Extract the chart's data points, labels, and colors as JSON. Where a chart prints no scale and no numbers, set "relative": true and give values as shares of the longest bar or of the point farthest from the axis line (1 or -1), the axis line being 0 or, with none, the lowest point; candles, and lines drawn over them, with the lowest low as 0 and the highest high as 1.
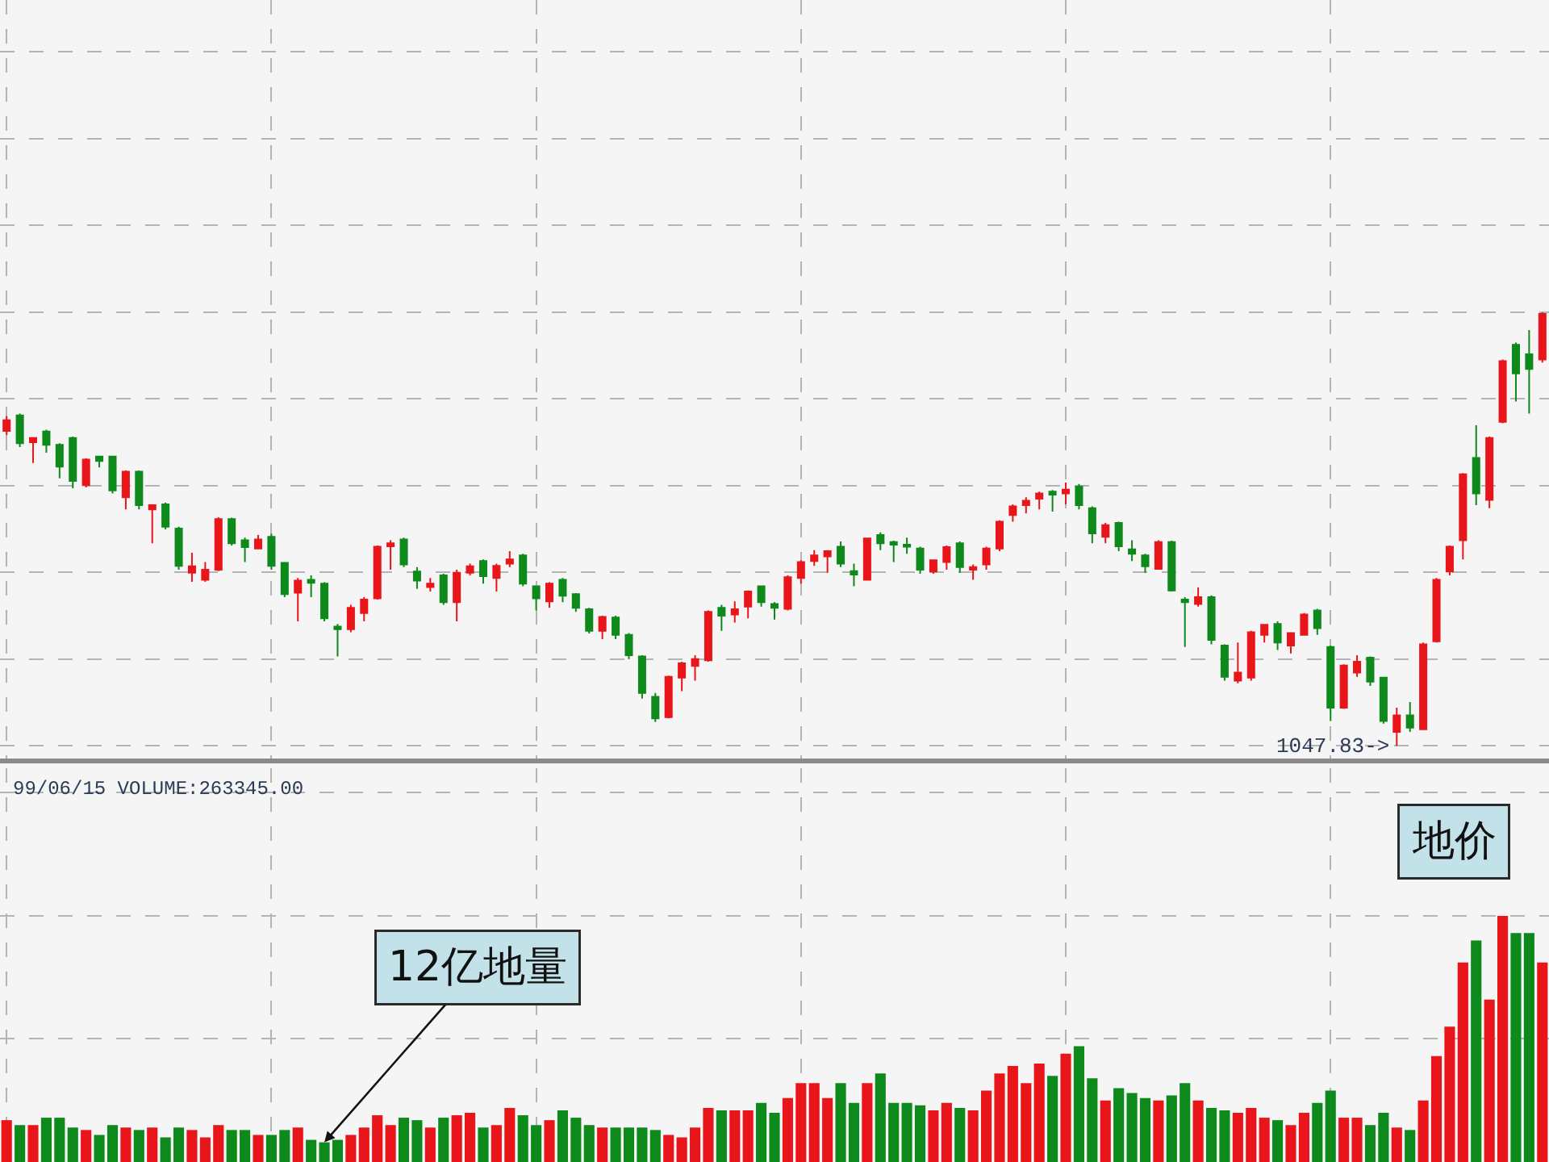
{
  "chart_data": [
    {
      "type": "candlestick",
      "relative": true,
      "grid": true,
      "tick_labels": false,
      "categories": [
        null,
        null,
        null,
        null,
        null,
        null,
        null,
        null,
        null,
        null,
        null,
        null,
        null,
        null,
        null,
        null,
        null,
        null,
        null,
        null,
        null,
        null,
        null,
        null,
        null,
        null,
        null,
        null,
        null,
        null,
        null,
        null,
        null,
        null,
        null,
        null,
        null,
        null,
        null,
        null,
        null,
        null,
        null,
        null,
        null,
        null,
        null,
        null,
        null,
        null,
        null,
        null,
        null,
        null,
        null,
        null,
        null,
        null,
        null,
        null,
        null,
        null,
        null,
        null,
        null,
        null,
        null,
        null,
        null,
        null,
        null,
        null,
        null,
        null,
        null,
        null,
        null,
        null,
        null,
        null,
        null,
        null,
        null,
        null,
        null,
        null,
        null,
        null,
        null,
        null,
        null,
        null,
        null,
        null,
        null,
        null,
        null,
        null,
        null,
        null,
        null,
        null,
        null,
        null,
        null,
        null,
        null,
        null,
        null,
        null,
        null,
        null,
        null,
        null,
        null,
        null,
        null
      ],
      "ohlc": [
        [
          0.726,
          0.76,
          0.716,
          0.751
        ],
        [
          0.762,
          0.766,
          0.689,
          0.698
        ],
        [
          0.7,
          0.71,
          0.652,
          0.71
        ],
        [
          0.725,
          0.729,
          0.676,
          0.694
        ],
        [
          0.694,
          0.698,
          0.617,
          0.644
        ],
        [
          0.71,
          0.713,
          0.594,
          0.611
        ],
        [
          0.601,
          0.663,
          0.596,
          0.66
        ],
        [
          0.667,
          0.669,
          0.642,
          0.657
        ],
        [
          0.667,
          0.669,
          0.582,
          0.589
        ],
        [
          0.573,
          0.635,
          0.545,
          0.632
        ],
        [
          0.632,
          0.635,
          0.545,
          0.555
        ],
        [
          0.545,
          0.555,
          0.467,
          0.555
        ],
        [
          0.557,
          0.561,
          0.499,
          0.505
        ],
        [
          0.501,
          0.505,
          0.406,
          0.415
        ],
        [
          0.399,
          0.445,
          0.378,
          0.414
        ],
        [
          0.383,
          0.424,
          0.378,
          0.406
        ],
        [
          0.406,
          0.527,
          0.403,
          0.523
        ],
        [
          0.523,
          0.526,
          0.462,
          0.467
        ],
        [
          0.474,
          0.48,
          0.424,
          0.458
        ],
        [
          0.455,
          0.486,
          0.453,
          0.476
        ],
        [
          0.482,
          0.489,
          0.406,
          0.415
        ],
        [
          0.422,
          0.424,
          0.343,
          0.35
        ],
        [
          0.353,
          0.387,
          0.287,
          0.381
        ],
        [
          0.383,
          0.393,
          0.343,
          0.376
        ],
        [
          0.374,
          0.377,
          0.287,
          0.294
        ],
        [
          0.275,
          0.281,
          0.206,
          0.269
        ],
        [
          0.269,
          0.325,
          0.262,
          0.318
        ],
        [
          0.306,
          0.343,
          0.287,
          0.337
        ],
        [
          0.34,
          0.462,
          0.337,
          0.459
        ],
        [
          0.46,
          0.474,
          0.406,
          0.467
        ],
        [
          0.476,
          0.48,
          0.412,
          0.418
        ],
        [
          0.402,
          0.412,
          0.362,
          0.381
        ],
        [
          0.366,
          0.387,
          0.356,
          0.374
        ],
        [
          0.393,
          0.397,
          0.325,
          0.331
        ],
        [
          0.331,
          0.406,
          0.287,
          0.399
        ],
        [
          0.399,
          0.42,
          0.393,
          0.414
        ],
        [
          0.426,
          0.43,
          0.374,
          0.391
        ],
        [
          0.387,
          0.42,
          0.356,
          0.415
        ],
        [
          0.42,
          0.449,
          0.412,
          0.43
        ],
        [
          0.439,
          0.443,
          0.368,
          0.374
        ],
        [
          0.368,
          0.37,
          0.312,
          0.34
        ],
        [
          0.333,
          0.377,
          0.318,
          0.374
        ],
        [
          0.383,
          0.387,
          0.331,
          0.346
        ],
        [
          0.35,
          0.352,
          0.309,
          0.318
        ],
        [
          0.315,
          0.318,
          0.259,
          0.265
        ],
        [
          0.265,
          0.3,
          0.246,
          0.297
        ],
        [
          0.296,
          0.3,
          0.246,
          0.256
        ],
        [
          0.256,
          0.26,
          0.2,
          0.209
        ],
        [
          0.206,
          0.209,
          0.109,
          0.122
        ],
        [
          0.113,
          0.122,
          0.055,
          0.063
        ],
        [
          0.066,
          0.162,
          0.063,
          0.159
        ],
        [
          0.157,
          0.194,
          0.126,
          0.19
        ],
        [
          0.184,
          0.209,
          0.15,
          0.2
        ],
        [
          0.197,
          0.312,
          0.194,
          0.309
        ],
        [
          0.318,
          0.325,
          0.265,
          0.3
        ],
        [
          0.303,
          0.333,
          0.284,
          0.315
        ],
        [
          0.321,
          0.358,
          0.294,
          0.356
        ],
        [
          0.368,
          0.37,
          0.321,
          0.331
        ],
        [
          0.327,
          0.331,
          0.291,
          0.318
        ],
        [
          0.316,
          0.393,
          0.312,
          0.389
        ],
        [
          0.387,
          0.428,
          0.374,
          0.424
        ],
        [
          0.426,
          0.451,
          0.415,
          0.439
        ],
        [
          0.437,
          0.451,
          0.399,
          0.449
        ],
        [
          0.459,
          0.471,
          0.412,
          0.42
        ],
        [
          0.403,
          0.42,
          0.368,
          0.395
        ],
        [
          0.383,
          0.48,
          0.381,
          0.478
        ],
        [
          0.486,
          0.492,
          0.451,
          0.467
        ],
        [
          0.47,
          0.473,
          0.424,
          0.464
        ],
        [
          0.464,
          0.48,
          0.443,
          0.459
        ],
        [
          0.455,
          0.459,
          0.397,
          0.406
        ],
        [
          0.402,
          0.43,
          0.397,
          0.428
        ],
        [
          0.424,
          0.462,
          0.406,
          0.458
        ],
        [
          0.467,
          0.471,
          0.399,
          0.412
        ],
        [
          0.406,
          0.418,
          0.383,
          0.412
        ],
        [
          0.418,
          0.459,
          0.406,
          0.455
        ],
        [
          0.455,
          0.52,
          0.449,
          0.517
        ],
        [
          0.532,
          0.557,
          0.517,
          0.552
        ],
        [
          0.555,
          0.573,
          0.536,
          0.565
        ],
        [
          0.57,
          0.586,
          0.545,
          0.582
        ],
        [
          0.586,
          0.59,
          0.54,
          0.579
        ],
        [
          0.582,
          0.607,
          0.557,
          0.591
        ],
        [
          0.598,
          0.604,
          0.545,
          0.555
        ],
        [
          0.548,
          0.552,
          0.467,
          0.49
        ],
        [
          0.482,
          0.514,
          0.467,
          0.509
        ],
        [
          0.514,
          0.517,
          0.449,
          0.46
        ],
        [
          0.453,
          0.474,
          0.426,
          0.443
        ],
        [
          0.439,
          0.443,
          0.399,
          0.414
        ],
        [
          0.408,
          0.474,
          0.406,
          0.47
        ],
        [
          0.47,
          0.473,
          0.356,
          0.358
        ],
        [
          0.337,
          0.343,
          0.228,
          0.331
        ],
        [
          0.327,
          0.365,
          0.321,
          0.343
        ],
        [
          0.343,
          0.347,
          0.234,
          0.244
        ],
        [
          0.231,
          0.234,
          0.15,
          0.159
        ],
        [
          0.15,
          0.238,
          0.144,
          0.169
        ],
        [
          0.157,
          0.265,
          0.15,
          0.262
        ],
        [
          0.256,
          0.281,
          0.238,
          0.279
        ],
        [
          0.281,
          0.287,
          0.221,
          0.238
        ],
        [
          0.231,
          0.262,
          0.213,
          0.26
        ],
        [
          0.256,
          0.306,
          0.254,
          0.303
        ],
        [
          0.312,
          0.316,
          0.256,
          0.271
        ],
        [
          0.228,
          0.231,
          0.057,
          0.088
        ],
        [
          0.088,
          0.188,
          0.085,
          0.185
        ],
        [
          0.169,
          0.209,
          0.159,
          0.194
        ],
        [
          0.203,
          0.206,
          0.138,
          0.148
        ],
        [
          0.157,
          0.159,
          0.051,
          0.057
        ],
        [
          0.032,
          0.088,
          0,
          0.07
        ],
        [
          0.07,
          0.101,
          0.032,
          0.042
        ],
        [
          0.038,
          0.238,
          0.036,
          0.234
        ],
        [
          0.241,
          0.387,
          0.238,
          0.383
        ],
        [
          0.402,
          0.462,
          0.393,
          0.459
        ],
        [
          0.474,
          0.629,
          0.43,
          0.626
        ],
        [
          0.664,
          0.739,
          0.555,
          0.582
        ],
        [
          0.567,
          0.713,
          0.548,
          0.71
        ],
        [
          0.747,
          0.891,
          0.744,
          0.887
        ],
        [
          0.925,
          0.93,
          0.794,
          0.859
        ],
        [
          0.903,
          0.959,
          0.766,
          0.869
        ],
        [
          0.891,
          1,
          0.884,
          0.996
        ]
      ],
      "colors": [
        "#e8161b",
        "#0e8a1c",
        "#e8161b",
        "#0e8a1c",
        "#0e8a1c",
        "#0e8a1c",
        "#e8161b",
        "#0e8a1c",
        "#0e8a1c",
        "#e8161b",
        "#0e8a1c",
        "#e8161b",
        "#0e8a1c",
        "#0e8a1c",
        "#e8161b",
        "#e8161b",
        "#e8161b",
        "#0e8a1c",
        "#0e8a1c",
        "#e8161b",
        "#0e8a1c",
        "#0e8a1c",
        "#e8161b",
        "#0e8a1c",
        "#0e8a1c",
        "#0e8a1c",
        "#e8161b",
        "#e8161b",
        "#e8161b",
        "#e8161b",
        "#0e8a1c",
        "#0e8a1c",
        "#e8161b",
        "#0e8a1c",
        "#e8161b",
        "#e8161b",
        "#0e8a1c",
        "#e8161b",
        "#e8161b",
        "#0e8a1c",
        "#0e8a1c",
        "#e8161b",
        "#0e8a1c",
        "#0e8a1c",
        "#0e8a1c",
        "#e8161b",
        "#0e8a1c",
        "#0e8a1c",
        "#0e8a1c",
        "#0e8a1c",
        "#e8161b",
        "#e8161b",
        "#e8161b",
        "#e8161b",
        "#0e8a1c",
        "#e8161b",
        "#e8161b",
        "#0e8a1c",
        "#0e8a1c",
        "#e8161b",
        "#e8161b",
        "#e8161b",
        "#e8161b",
        "#0e8a1c",
        "#0e8a1c",
        "#e8161b",
        "#0e8a1c",
        "#0e8a1c",
        "#0e8a1c",
        "#0e8a1c",
        "#e8161b",
        "#e8161b",
        "#0e8a1c",
        "#e8161b",
        "#e8161b",
        "#e8161b",
        "#e8161b",
        "#e8161b",
        "#e8161b",
        "#0e8a1c",
        "#e8161b",
        "#0e8a1c",
        "#0e8a1c",
        "#e8161b",
        "#0e8a1c",
        "#0e8a1c",
        "#0e8a1c",
        "#e8161b",
        "#0e8a1c",
        "#0e8a1c",
        "#e8161b",
        "#0e8a1c",
        "#0e8a1c",
        "#e8161b",
        "#e8161b",
        "#e8161b",
        "#0e8a1c",
        "#e8161b",
        "#e8161b",
        "#0e8a1c",
        "#0e8a1c",
        "#e8161b",
        "#e8161b",
        "#0e8a1c",
        "#0e8a1c",
        "#e8161b",
        "#0e8a1c",
        "#e8161b",
        "#e8161b",
        "#e8161b",
        "#e8161b",
        "#0e8a1c",
        "#e8161b",
        "#e8161b",
        "#0e8a1c",
        "#0e8a1c",
        "#e8161b"
      ],
      "annotations": [
        "1047.83->"
      ]
    },
    {
      "type": "bar",
      "relative": true,
      "grid": true,
      "tick_labels": false,
      "title": "99/06/15 VOLUME:263345.00",
      "categories": [
        null,
        null,
        null,
        null,
        null,
        null,
        null,
        null,
        null,
        null,
        null,
        null,
        null,
        null,
        null,
        null,
        null,
        null,
        null,
        null,
        null,
        null,
        null,
        null,
        null,
        null,
        null,
        null,
        null,
        null,
        null,
        null,
        null,
        null,
        null,
        null,
        null,
        null,
        null,
        null,
        null,
        null,
        null,
        null,
        null,
        null,
        null,
        null,
        null,
        null,
        null,
        null,
        null,
        null,
        null,
        null,
        null,
        null,
        null,
        null,
        null,
        null,
        null,
        null,
        null,
        null,
        null,
        null,
        null,
        null,
        null,
        null,
        null,
        null,
        null,
        null,
        null,
        null,
        null,
        null,
        null,
        null,
        null,
        null,
        null,
        null,
        null,
        null,
        null,
        null,
        null,
        null,
        null,
        null,
        null,
        null,
        null,
        null,
        null,
        null,
        null,
        null,
        null,
        null,
        null,
        null,
        null,
        null,
        null,
        null,
        null,
        null,
        null,
        null,
        null,
        null,
        null
      ],
      "values": [
        0.17,
        0.15,
        0.15,
        0.18,
        0.18,
        0.14,
        0.13,
        0.11,
        0.15,
        0.14,
        0.13,
        0.14,
        0.1,
        0.14,
        0.13,
        0.1,
        0.15,
        0.13,
        0.13,
        0.11,
        0.11,
        0.13,
        0.14,
        0.09,
        0.08,
        0.09,
        0.11,
        0.14,
        0.19,
        0.15,
        0.18,
        0.17,
        0.14,
        0.18,
        0.19,
        0.2,
        0.14,
        0.15,
        0.22,
        0.19,
        0.15,
        0.17,
        0.21,
        0.18,
        0.15,
        0.14,
        0.14,
        0.14,
        0.14,
        0.13,
        0.11,
        0.1,
        0.14,
        0.22,
        0.21,
        0.21,
        0.21,
        0.24,
        0.2,
        0.26,
        0.32,
        0.32,
        0.26,
        0.32,
        0.24,
        0.32,
        0.36,
        0.24,
        0.24,
        0.23,
        0.21,
        0.24,
        0.22,
        0.21,
        0.29,
        0.36,
        0.39,
        0.32,
        0.4,
        0.35,
        0.44,
        0.47,
        0.34,
        0.25,
        0.3,
        0.28,
        0.26,
        0.25,
        0.27,
        0.32,
        0.25,
        0.22,
        0.21,
        0.2,
        0.22,
        0.18,
        0.17,
        0.15,
        0.2,
        0.24,
        0.29,
        0.18,
        0.18,
        0.15,
        0.2,
        0.14,
        0.13,
        0.25,
        0.43,
        0.55,
        0.81,
        0.9,
        0.66,
        1.0,
        0.93,
        0.93,
        0.81
      ],
      "colors": [
        "#e8161b",
        "#0e8a1c",
        "#e8161b",
        "#0e8a1c",
        "#0e8a1c",
        "#0e8a1c",
        "#e8161b",
        "#0e8a1c",
        "#0e8a1c",
        "#e8161b",
        "#0e8a1c",
        "#e8161b",
        "#0e8a1c",
        "#0e8a1c",
        "#e8161b",
        "#e8161b",
        "#e8161b",
        "#0e8a1c",
        "#0e8a1c",
        "#e8161b",
        "#0e8a1c",
        "#0e8a1c",
        "#e8161b",
        "#0e8a1c",
        "#0e8a1c",
        "#0e8a1c",
        "#e8161b",
        "#e8161b",
        "#e8161b",
        "#e8161b",
        "#0e8a1c",
        "#0e8a1c",
        "#e8161b",
        "#0e8a1c",
        "#e8161b",
        "#e8161b",
        "#0e8a1c",
        "#e8161b",
        "#e8161b",
        "#0e8a1c",
        "#0e8a1c",
        "#e8161b",
        "#0e8a1c",
        "#0e8a1c",
        "#0e8a1c",
        "#e8161b",
        "#0e8a1c",
        "#0e8a1c",
        "#0e8a1c",
        "#0e8a1c",
        "#e8161b",
        "#e8161b",
        "#e8161b",
        "#e8161b",
        "#0e8a1c",
        "#e8161b",
        "#e8161b",
        "#0e8a1c",
        "#0e8a1c",
        "#e8161b",
        "#e8161b",
        "#e8161b",
        "#e8161b",
        "#0e8a1c",
        "#0e8a1c",
        "#e8161b",
        "#0e8a1c",
        "#0e8a1c",
        "#0e8a1c",
        "#0e8a1c",
        "#e8161b",
        "#e8161b",
        "#0e8a1c",
        "#e8161b",
        "#e8161b",
        "#e8161b",
        "#e8161b",
        "#e8161b",
        "#e8161b",
        "#0e8a1c",
        "#e8161b",
        "#0e8a1c",
        "#0e8a1c",
        "#e8161b",
        "#0e8a1c",
        "#0e8a1c",
        "#0e8a1c",
        "#e8161b",
        "#0e8a1c",
        "#0e8a1c",
        "#e8161b",
        "#0e8a1c",
        "#0e8a1c",
        "#e8161b",
        "#e8161b",
        "#e8161b",
        "#0e8a1c",
        "#e8161b",
        "#e8161b",
        "#0e8a1c",
        "#0e8a1c",
        "#e8161b",
        "#e8161b",
        "#0e8a1c",
        "#0e8a1c",
        "#e8161b",
        "#0e8a1c",
        "#e8161b",
        "#e8161b",
        "#e8161b",
        "#e8161b",
        "#0e8a1c",
        "#e8161b",
        "#e8161b",
        "#0e8a1c",
        "#0e8a1c",
        "#e8161b"
      ],
      "annotations": [
        "12亿地量",
        "地价"
      ]
    }
  ]
}
